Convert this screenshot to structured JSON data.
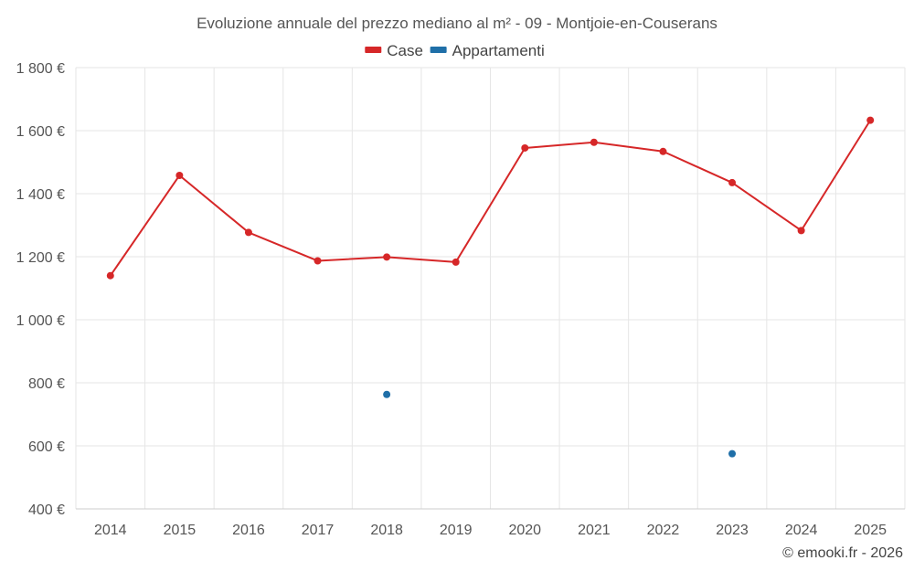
{
  "chart_data": {
    "type": "line",
    "title": "Evoluzione annuale del prezzo mediano al m² - 09 - Montjoie-en-Couserans",
    "categories": [
      "2014",
      "2015",
      "2016",
      "2017",
      "2018",
      "2019",
      "2020",
      "2021",
      "2022",
      "2023",
      "2024",
      "2025"
    ],
    "series": [
      {
        "name": "Case",
        "color": "#d62728",
        "values": [
          1140,
          1458,
          1277,
          1187,
          1199,
          1183,
          1545,
          1563,
          1534,
          1435,
          1283,
          1633
        ]
      },
      {
        "name": "Appartamenti",
        "color": "#1f6fa8",
        "values": [
          null,
          null,
          null,
          null,
          763,
          null,
          null,
          null,
          null,
          575,
          null,
          null
        ]
      }
    ],
    "ylim": [
      400,
      1800
    ],
    "yticks": [
      400,
      600,
      800,
      1000,
      1200,
      1400,
      1600,
      1800
    ],
    "ytick_labels": [
      "400 €",
      "600 €",
      "800 €",
      "1 000 €",
      "1 200 €",
      "1 400 €",
      "1 600 €",
      "1 800 €"
    ],
    "grid": true,
    "legend_position": "top-center",
    "xlabel": "",
    "ylabel": ""
  },
  "credit": "© emooki.fr - 2026"
}
